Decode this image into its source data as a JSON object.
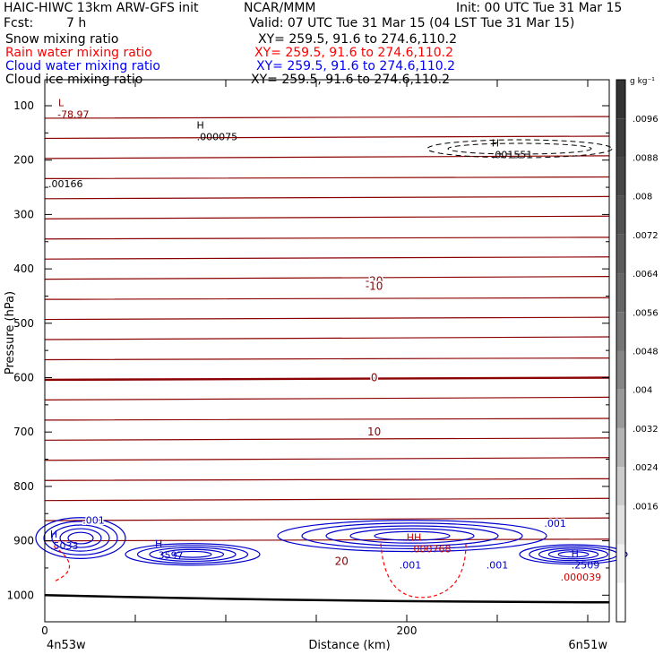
{
  "header": {
    "model": "HAIC-HIWC 13km ARW-GFS init",
    "org": "NCAR/MMM",
    "init": "Init: 00 UTC Tue 31 Mar 15",
    "fcst_label": "Fcst:",
    "fcst_value": "7 h",
    "valid": "Valid: 07 UTC Tue 31 Mar 15 (04 LST Tue 31 Mar 15)"
  },
  "fields": [
    {
      "name": "Snow mixing ratio",
      "xy": "XY= 259.5, 91.6 to 274.6,110.2",
      "color": "#000000"
    },
    {
      "name": "Rain water mixing ratio",
      "xy": "XY= 259.5, 91.6 to 274.6,110.2",
      "color": "#ff0000"
    },
    {
      "name": "Cloud water mixing ratio",
      "xy": "XY= 259.5, 91.6 to 274.6,110.2",
      "color": "#0000ff"
    },
    {
      "name": "Cloud ice mixing ratio",
      "xy": "XY= 259.5, 91.6 to 274.6,110.2",
      "color": "#000000"
    }
  ],
  "chart_data": {
    "type": "contour",
    "xlabel": "Distance (km)",
    "ylabel": "Pressure (hPa)",
    "x_ticks": [
      0,
      200
    ],
    "xlim": [
      0,
      313
    ],
    "y_ticks": [
      100,
      200,
      300,
      400,
      500,
      600,
      700,
      800,
      900,
      1000
    ],
    "ylim": [
      50,
      1050
    ],
    "y_scale": "linear",
    "endpoints": {
      "left": "4n53w",
      "right": "6n51w"
    },
    "colorbar": {
      "units": "g kg⁻¹",
      "labels": [
        ".0096",
        ".0088",
        ".008",
        ".0072",
        ".0064",
        ".0056",
        ".0048",
        ".004",
        ".0032",
        ".0024",
        ".0016"
      ],
      "shades": [
        "#333333",
        "#3d3d3d",
        "#474747",
        "#525252",
        "#5c5c5c",
        "#666666",
        "#757575",
        "#858585",
        "#999999",
        "#b3b3b3",
        "#cccccc",
        "#e0e0e0",
        "#f0f0f0",
        "#ffffff"
      ]
    },
    "temperature_labels": [
      {
        "text": "-20",
        "x": 182,
        "p": 422
      },
      {
        "text": "-10",
        "x": 182,
        "p": 432
      },
      {
        "text": "0",
        "x": 182,
        "p": 600
      },
      {
        "text": "10",
        "x": 182,
        "p": 700
      },
      {
        "text": "20",
        "x": 164,
        "p": 938
      }
    ],
    "extrema": [
      {
        "kind": "L",
        "value": "-78.97",
        "x": 5,
        "p": 104,
        "color": "#8b0000"
      },
      {
        "kind": "H",
        "value": ".000075",
        "x": 82,
        "p": 145,
        "color": "#000000"
      },
      {
        "kind": "H",
        "value": ".001551",
        "x": 245,
        "p": 178,
        "color": "#000000"
      },
      {
        "kind": "",
        "value": ".00166",
        "x": 0,
        "p": 232,
        "color": "#000000"
      },
      {
        "kind": "H",
        "value": ".5033",
        "x": 1,
        "p": 897,
        "color": "#0000cc"
      },
      {
        "kind": "H",
        "value": ".3597",
        "x": 59,
        "p": 915,
        "color": "#0000cc"
      },
      {
        "kind": "HH",
        "value": ".000768",
        "x": 200,
        "p": 903,
        "color": "#cc0000"
      },
      {
        "kind": "H",
        "value": ".2509",
        "x": 289,
        "p": 933,
        "color": "#0000cc"
      },
      {
        "kind": "",
        "value": ".000039",
        "x": 283,
        "p": 955,
        "color": "#cc0000"
      }
    ],
    "cloud_water_labels": [
      {
        "text": ".001",
        "x": 27,
        "p": 862
      },
      {
        "text": ".001",
        "x": 282,
        "p": 868
      },
      {
        "text": ".001",
        "x": 202,
        "p": 944
      },
      {
        "text": ".001",
        "x": 250,
        "p": 944
      }
    ]
  }
}
